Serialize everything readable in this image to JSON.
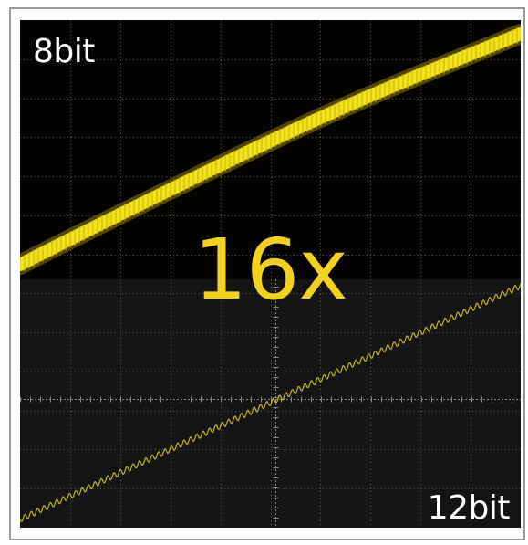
{
  "labels": {
    "top": "8bit",
    "bottom": "12bit",
    "center": "16x"
  },
  "colors": {
    "trace": "#f2e21a",
    "trace_thin": "#d8c81e",
    "center_text": "#f2d21e",
    "grid": "#5a5a5a",
    "panel_top_bg": "#050301",
    "panel_bottom_bg": "#141414"
  }
}
